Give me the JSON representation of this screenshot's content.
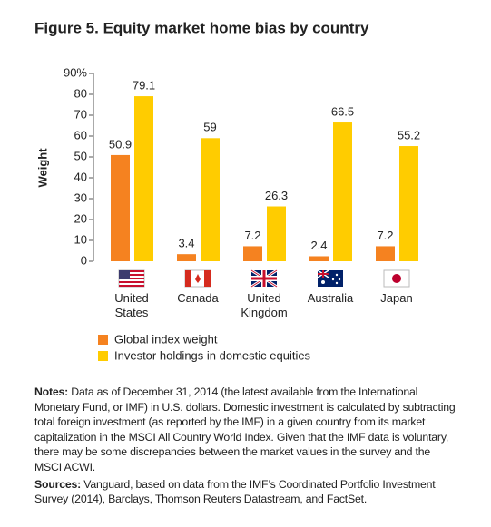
{
  "chart_data": {
    "type": "bar",
    "title": "Figure 5. Equity market home bias by country",
    "y_label": "Weight",
    "categories": [
      "United States",
      "Canada",
      "United Kingdom",
      "Australia",
      "Japan"
    ],
    "series": [
      {
        "name": "Global index weight",
        "color": "#f58220",
        "values": [
          50.9,
          3.4,
          7.2,
          2.4,
          7.2
        ]
      },
      {
        "name": "Investor holdings in domestic equities",
        "color": "#ffcc00",
        "values": [
          79.1,
          59,
          26.3,
          66.5,
          55.2
        ]
      }
    ],
    "ylim": [
      0,
      90
    ],
    "yticks": [
      0,
      10,
      20,
      30,
      40,
      50,
      60,
      70,
      80,
      {
        "value": 90,
        "label": "90%"
      }
    ]
  },
  "notes": {
    "label": "Notes:",
    "text": "Data as of December 31, 2014 (the latest available from the International Monetary Fund, or IMF) in U.S. dollars. Domestic investment is calculated by subtracting total foreign investment (as reported by the IMF) in a given country from its market capitalization in the MSCI All Country World Index. Given that the IMF data is voluntary, there may be some discrepancies between the market values in the survey and the MSCI ACWI."
  },
  "sources": {
    "label": "Sources:",
    "text": "Vanguard, based on data from the IMF’s Coordinated Portfolio Investment Survey (2014), Barclays, Thomson Reuters Datastream, and FactSet."
  }
}
